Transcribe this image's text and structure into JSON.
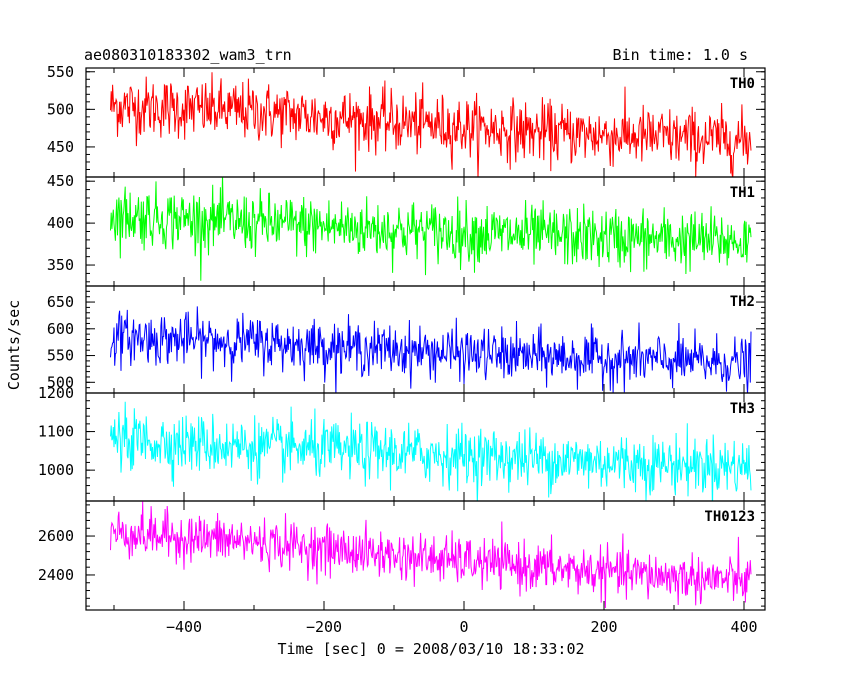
{
  "header": {
    "title": "ae080310183302_wam3_trn",
    "bin_time": "Bin time: 1.0 s"
  },
  "chart_data": {
    "type": "line",
    "xlabel": "Time [sec] 0 = 2008/03/10 18:33:02",
    "ylabel": "Counts/sec",
    "xlim": [
      -540,
      430
    ],
    "xticks": [
      -400,
      -200,
      0,
      200,
      400
    ],
    "x_range": [
      -505,
      410
    ],
    "bin_time_s": 1.0,
    "grid": false,
    "legend": "panel labels top-right",
    "panels": [
      {
        "name": "TH0",
        "color": "#ff0000",
        "ylim": [
          410,
          555
        ],
        "yticks": [
          450,
          500,
          550
        ],
        "trend_points": [
          [
            -505,
            505
          ],
          [
            -300,
            497
          ],
          [
            -100,
            483
          ],
          [
            100,
            470
          ],
          [
            300,
            462
          ],
          [
            410,
            458
          ]
        ],
        "noise_sd": 20
      },
      {
        "name": "TH1",
        "color": "#00ff00",
        "ylim": [
          325,
          455
        ],
        "yticks": [
          350,
          400,
          450
        ],
        "trend_points": [
          [
            -505,
            410
          ],
          [
            -300,
            400
          ],
          [
            -100,
            392
          ],
          [
            100,
            385
          ],
          [
            300,
            380
          ],
          [
            410,
            378
          ]
        ],
        "noise_sd": 18
      },
      {
        "name": "TH2",
        "color": "#0000ff",
        "ylim": [
          480,
          680
        ],
        "yticks": [
          500,
          550,
          600,
          650
        ],
        "trend_points": [
          [
            -505,
            585
          ],
          [
            -300,
            575
          ],
          [
            -100,
            560
          ],
          [
            100,
            548
          ],
          [
            300,
            540
          ],
          [
            410,
            535
          ]
        ],
        "noise_sd": 24
      },
      {
        "name": "TH3",
        "color": "#00ffff",
        "ylim": [
          920,
          1200
        ],
        "yticks": [
          1000,
          1100,
          1200
        ],
        "trend_points": [
          [
            -505,
            1080
          ],
          [
            -300,
            1060
          ],
          [
            -100,
            1045
          ],
          [
            100,
            1030
          ],
          [
            300,
            1015
          ],
          [
            410,
            1010
          ]
        ],
        "noise_sd": 38
      },
      {
        "name": "TH0123",
        "color": "#ff00ff",
        "ylim": [
          2220,
          2780
        ],
        "yticks": [
          2400,
          2600
        ],
        "trend_points": [
          [
            -505,
            2620
          ],
          [
            -300,
            2570
          ],
          [
            -100,
            2500
          ],
          [
            100,
            2440
          ],
          [
            300,
            2390
          ],
          [
            410,
            2370
          ]
        ],
        "noise_sd": 62
      }
    ]
  }
}
